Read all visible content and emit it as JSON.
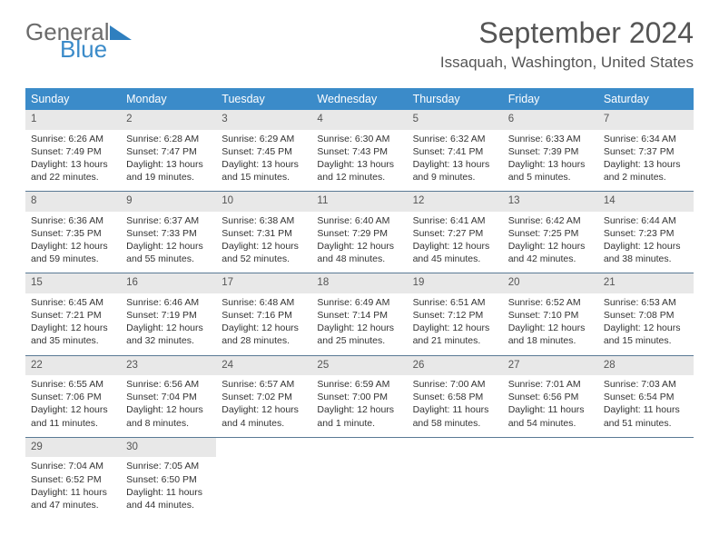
{
  "logo": {
    "word1": "General",
    "word2": "Blue"
  },
  "title": "September 2024",
  "subtitle": "Issaquah, Washington, United States",
  "colors": {
    "header_bg": "#3b8bc9",
    "header_text": "#ffffff",
    "daynum_bg": "#e8e8e8",
    "row_border": "#5a7a95",
    "body_text": "#333333",
    "title_text": "#555555",
    "logo_gray": "#6b6b6b",
    "logo_blue": "#3b8bc9"
  },
  "typography": {
    "title_fontsize": 32,
    "subtitle_fontsize": 17,
    "weekday_fontsize": 12.5,
    "daynum_fontsize": 11.5,
    "cell_fontsize": 10.5
  },
  "layout": {
    "columns": 7,
    "rows": 5
  },
  "weekdays": [
    "Sunday",
    "Monday",
    "Tuesday",
    "Wednesday",
    "Thursday",
    "Friday",
    "Saturday"
  ],
  "days": [
    {
      "n": "1",
      "sunrise": "6:26 AM",
      "sunset": "7:49 PM",
      "dl1": "Daylight: 13 hours",
      "dl2": "and 22 minutes."
    },
    {
      "n": "2",
      "sunrise": "6:28 AM",
      "sunset": "7:47 PM",
      "dl1": "Daylight: 13 hours",
      "dl2": "and 19 minutes."
    },
    {
      "n": "3",
      "sunrise": "6:29 AM",
      "sunset": "7:45 PM",
      "dl1": "Daylight: 13 hours",
      "dl2": "and 15 minutes."
    },
    {
      "n": "4",
      "sunrise": "6:30 AM",
      "sunset": "7:43 PM",
      "dl1": "Daylight: 13 hours",
      "dl2": "and 12 minutes."
    },
    {
      "n": "5",
      "sunrise": "6:32 AM",
      "sunset": "7:41 PM",
      "dl1": "Daylight: 13 hours",
      "dl2": "and 9 minutes."
    },
    {
      "n": "6",
      "sunrise": "6:33 AM",
      "sunset": "7:39 PM",
      "dl1": "Daylight: 13 hours",
      "dl2": "and 5 minutes."
    },
    {
      "n": "7",
      "sunrise": "6:34 AM",
      "sunset": "7:37 PM",
      "dl1": "Daylight: 13 hours",
      "dl2": "and 2 minutes."
    },
    {
      "n": "8",
      "sunrise": "6:36 AM",
      "sunset": "7:35 PM",
      "dl1": "Daylight: 12 hours",
      "dl2": "and 59 minutes."
    },
    {
      "n": "9",
      "sunrise": "6:37 AM",
      "sunset": "7:33 PM",
      "dl1": "Daylight: 12 hours",
      "dl2": "and 55 minutes."
    },
    {
      "n": "10",
      "sunrise": "6:38 AM",
      "sunset": "7:31 PM",
      "dl1": "Daylight: 12 hours",
      "dl2": "and 52 minutes."
    },
    {
      "n": "11",
      "sunrise": "6:40 AM",
      "sunset": "7:29 PM",
      "dl1": "Daylight: 12 hours",
      "dl2": "and 48 minutes."
    },
    {
      "n": "12",
      "sunrise": "6:41 AM",
      "sunset": "7:27 PM",
      "dl1": "Daylight: 12 hours",
      "dl2": "and 45 minutes."
    },
    {
      "n": "13",
      "sunrise": "6:42 AM",
      "sunset": "7:25 PM",
      "dl1": "Daylight: 12 hours",
      "dl2": "and 42 minutes."
    },
    {
      "n": "14",
      "sunrise": "6:44 AM",
      "sunset": "7:23 PM",
      "dl1": "Daylight: 12 hours",
      "dl2": "and 38 minutes."
    },
    {
      "n": "15",
      "sunrise": "6:45 AM",
      "sunset": "7:21 PM",
      "dl1": "Daylight: 12 hours",
      "dl2": "and 35 minutes."
    },
    {
      "n": "16",
      "sunrise": "6:46 AM",
      "sunset": "7:19 PM",
      "dl1": "Daylight: 12 hours",
      "dl2": "and 32 minutes."
    },
    {
      "n": "17",
      "sunrise": "6:48 AM",
      "sunset": "7:16 PM",
      "dl1": "Daylight: 12 hours",
      "dl2": "and 28 minutes."
    },
    {
      "n": "18",
      "sunrise": "6:49 AM",
      "sunset": "7:14 PM",
      "dl1": "Daylight: 12 hours",
      "dl2": "and 25 minutes."
    },
    {
      "n": "19",
      "sunrise": "6:51 AM",
      "sunset": "7:12 PM",
      "dl1": "Daylight: 12 hours",
      "dl2": "and 21 minutes."
    },
    {
      "n": "20",
      "sunrise": "6:52 AM",
      "sunset": "7:10 PM",
      "dl1": "Daylight: 12 hours",
      "dl2": "and 18 minutes."
    },
    {
      "n": "21",
      "sunrise": "6:53 AM",
      "sunset": "7:08 PM",
      "dl1": "Daylight: 12 hours",
      "dl2": "and 15 minutes."
    },
    {
      "n": "22",
      "sunrise": "6:55 AM",
      "sunset": "7:06 PM",
      "dl1": "Daylight: 12 hours",
      "dl2": "and 11 minutes."
    },
    {
      "n": "23",
      "sunrise": "6:56 AM",
      "sunset": "7:04 PM",
      "dl1": "Daylight: 12 hours",
      "dl2": "and 8 minutes."
    },
    {
      "n": "24",
      "sunrise": "6:57 AM",
      "sunset": "7:02 PM",
      "dl1": "Daylight: 12 hours",
      "dl2": "and 4 minutes."
    },
    {
      "n": "25",
      "sunrise": "6:59 AM",
      "sunset": "7:00 PM",
      "dl1": "Daylight: 12 hours",
      "dl2": "and 1 minute."
    },
    {
      "n": "26",
      "sunrise": "7:00 AM",
      "sunset": "6:58 PM",
      "dl1": "Daylight: 11 hours",
      "dl2": "and 58 minutes."
    },
    {
      "n": "27",
      "sunrise": "7:01 AM",
      "sunset": "6:56 PM",
      "dl1": "Daylight: 11 hours",
      "dl2": "and 54 minutes."
    },
    {
      "n": "28",
      "sunrise": "7:03 AM",
      "sunset": "6:54 PM",
      "dl1": "Daylight: 11 hours",
      "dl2": "and 51 minutes."
    },
    {
      "n": "29",
      "sunrise": "7:04 AM",
      "sunset": "6:52 PM",
      "dl1": "Daylight: 11 hours",
      "dl2": "and 47 minutes."
    },
    {
      "n": "30",
      "sunrise": "7:05 AM",
      "sunset": "6:50 PM",
      "dl1": "Daylight: 11 hours",
      "dl2": "and 44 minutes."
    }
  ],
  "labels": {
    "sunrise_prefix": "Sunrise: ",
    "sunset_prefix": "Sunset: "
  }
}
